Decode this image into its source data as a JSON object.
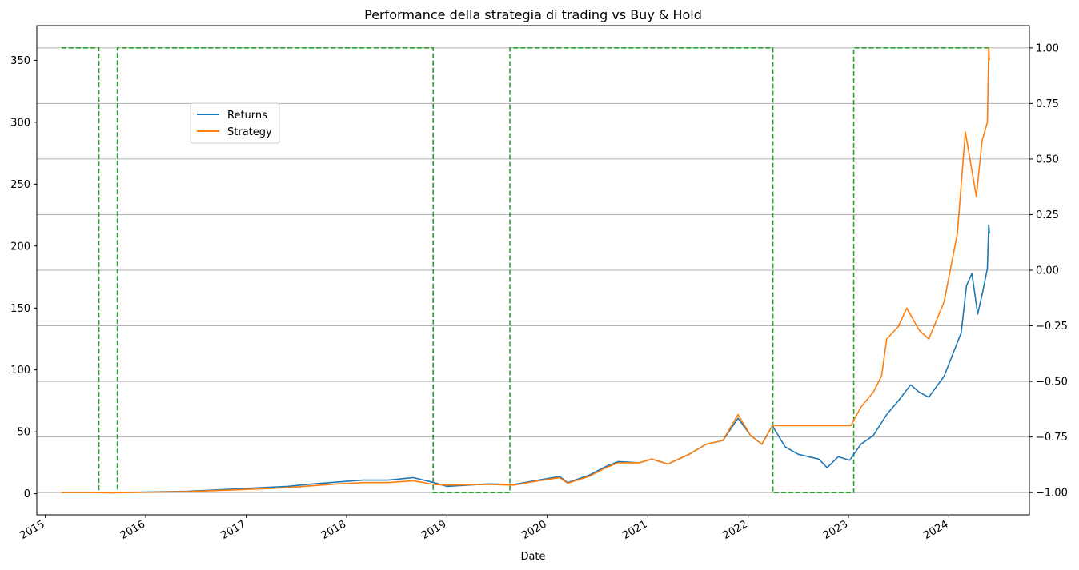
{
  "chart_data": {
    "type": "line",
    "title": "Performance della strategia di trading vs Buy & Hold",
    "xlabel": "Date",
    "ylabel": "",
    "y2label": "",
    "xlim": [
      "2014-12-01",
      "2024-10-20"
    ],
    "ylim": [
      -17,
      378
    ],
    "y2lim": [
      -1.1,
      1.1
    ],
    "x_ticks": [
      "2015",
      "2016",
      "2017",
      "2018",
      "2019",
      "2020",
      "2021",
      "2022",
      "2023",
      "2024"
    ],
    "y_ticks": [
      0,
      50,
      100,
      150,
      200,
      250,
      300,
      350
    ],
    "y2_ticks": [
      "1.00",
      "0.75",
      "0.50",
      "0.25",
      "0.00",
      "−0.25",
      "−0.50",
      "−0.75",
      "−1.00"
    ],
    "y2_tick_values": [
      1.0,
      0.75,
      0.5,
      0.25,
      0.0,
      -0.25,
      -0.5,
      -0.75,
      -1.0
    ],
    "grid": "y2-major",
    "legend_position": "upper-left",
    "series": [
      {
        "name": "Returns",
        "color": "#1f77b4",
        "axis": "left",
        "points": [
          [
            "2015-03-01",
            1
          ],
          [
            "2015-06-01",
            1
          ],
          [
            "2015-09-01",
            0.9
          ],
          [
            "2016-01-01",
            1.3
          ],
          [
            "2016-06-01",
            2
          ],
          [
            "2016-12-01",
            4
          ],
          [
            "2017-03-01",
            5
          ],
          [
            "2017-06-01",
            6
          ],
          [
            "2017-09-01",
            8
          ],
          [
            "2017-12-01",
            9.5
          ],
          [
            "2018-03-01",
            11
          ],
          [
            "2018-06-01",
            11
          ],
          [
            "2018-09-01",
            13
          ],
          [
            "2018-11-15",
            9
          ],
          [
            "2019-01-01",
            6
          ],
          [
            "2019-06-01",
            8
          ],
          [
            "2019-09-01",
            7.5
          ],
          [
            "2019-12-01",
            11
          ],
          [
            "2020-02-15",
            14
          ],
          [
            "2020-03-15",
            9
          ],
          [
            "2020-06-01",
            15
          ],
          [
            "2020-08-01",
            22
          ],
          [
            "2020-09-15",
            26
          ],
          [
            "2020-12-01",
            25
          ],
          [
            "2021-01-15",
            28
          ],
          [
            "2021-03-15",
            24
          ],
          [
            "2021-06-01",
            32
          ],
          [
            "2021-08-01",
            40
          ],
          [
            "2021-10-01",
            43
          ],
          [
            "2021-11-25",
            61
          ],
          [
            "2022-01-10",
            47
          ],
          [
            "2022-02-20",
            40
          ],
          [
            "2022-03-30",
            55
          ],
          [
            "2022-05-15",
            38
          ],
          [
            "2022-07-01",
            32
          ],
          [
            "2022-09-15",
            28
          ],
          [
            "2022-10-15",
            21
          ],
          [
            "2022-11-25",
            30
          ],
          [
            "2023-01-05",
            27
          ],
          [
            "2023-02-15",
            40
          ],
          [
            "2023-04-01",
            47
          ],
          [
            "2023-05-20",
            64
          ],
          [
            "2023-07-01",
            75
          ],
          [
            "2023-08-15",
            88
          ],
          [
            "2023-09-15",
            82
          ],
          [
            "2023-10-20",
            78
          ],
          [
            "2023-12-15",
            95
          ],
          [
            "2024-02-15",
            130
          ],
          [
            "2024-03-05",
            168
          ],
          [
            "2024-03-25",
            178
          ],
          [
            "2024-04-15",
            145
          ],
          [
            "2024-05-05",
            165
          ],
          [
            "2024-05-20",
            182
          ],
          [
            "2024-05-25",
            217
          ],
          [
            "2024-05-28",
            210
          ]
        ]
      },
      {
        "name": "Strategy",
        "color": "#ff7f0e",
        "axis": "left",
        "points": [
          [
            "2015-03-01",
            1
          ],
          [
            "2015-06-01",
            1
          ],
          [
            "2015-09-01",
            0.8
          ],
          [
            "2016-01-01",
            1.2
          ],
          [
            "2016-06-01",
            1.8
          ],
          [
            "2016-12-01",
            3.2
          ],
          [
            "2017-03-01",
            4
          ],
          [
            "2017-06-01",
            5
          ],
          [
            "2017-09-01",
            6.5
          ],
          [
            "2017-12-01",
            8
          ],
          [
            "2018-03-01",
            9
          ],
          [
            "2018-06-01",
            9
          ],
          [
            "2018-09-01",
            10.5
          ],
          [
            "2018-11-15",
            7.5
          ],
          [
            "2019-01-01",
            7
          ],
          [
            "2019-06-01",
            7.5
          ],
          [
            "2019-09-01",
            7
          ],
          [
            "2019-12-01",
            10.5
          ],
          [
            "2020-02-15",
            13
          ],
          [
            "2020-03-15",
            8.5
          ],
          [
            "2020-06-01",
            14
          ],
          [
            "2020-08-01",
            21
          ],
          [
            "2020-09-15",
            25
          ],
          [
            "2020-12-01",
            25
          ],
          [
            "2021-01-15",
            28
          ],
          [
            "2021-03-15",
            24
          ],
          [
            "2021-06-01",
            32
          ],
          [
            "2021-08-01",
            40
          ],
          [
            "2021-10-01",
            43
          ],
          [
            "2021-11-25",
            64
          ],
          [
            "2022-01-10",
            47
          ],
          [
            "2022-02-20",
            40
          ],
          [
            "2022-03-30",
            55
          ],
          [
            "2023-01-10",
            55
          ],
          [
            "2023-02-15",
            70
          ],
          [
            "2023-04-01",
            82
          ],
          [
            "2023-05-01",
            95
          ],
          [
            "2023-05-20",
            125
          ],
          [
            "2023-07-01",
            135
          ],
          [
            "2023-08-01",
            150
          ],
          [
            "2023-09-15",
            132
          ],
          [
            "2023-10-20",
            125
          ],
          [
            "2023-12-15",
            155
          ],
          [
            "2024-02-01",
            210
          ],
          [
            "2024-03-01",
            292
          ],
          [
            "2024-04-10",
            240
          ],
          [
            "2024-05-01",
            285
          ],
          [
            "2024-05-20",
            300
          ],
          [
            "2024-05-25",
            360
          ],
          [
            "2024-05-28",
            350
          ]
        ]
      },
      {
        "name": "",
        "color": "#2ca02c",
        "axis": "right",
        "style": "dashed",
        "points": [
          [
            "2015-03-01",
            1
          ],
          [
            "2015-07-15",
            1
          ],
          [
            "2015-07-15",
            -1
          ],
          [
            "2015-09-20",
            -1
          ],
          [
            "2015-09-20",
            1
          ],
          [
            "2018-11-12",
            1
          ],
          [
            "2018-11-12",
            -1
          ],
          [
            "2019-08-18",
            -1
          ],
          [
            "2019-08-18",
            1
          ],
          [
            "2022-04-01",
            1
          ],
          [
            "2022-04-01",
            -1
          ],
          [
            "2023-01-20",
            -1
          ],
          [
            "2023-01-20",
            1
          ],
          [
            "2024-05-28",
            1
          ]
        ]
      }
    ]
  }
}
